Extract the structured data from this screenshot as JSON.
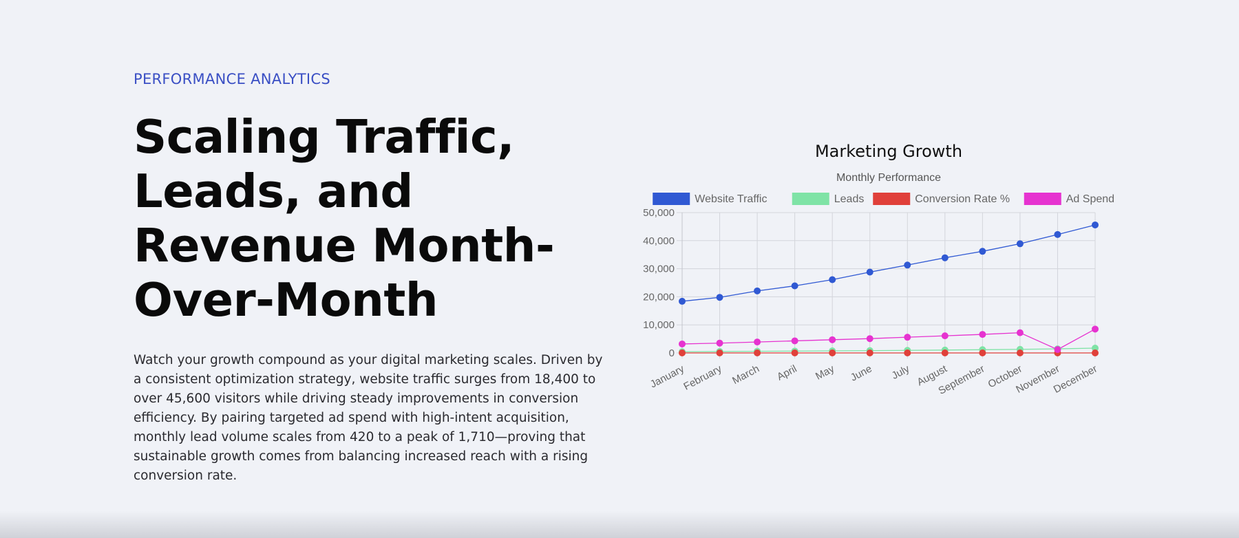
{
  "hero": {
    "eyebrow": "PERFORMANCE ANALYTICS",
    "headline": "Scaling Traffic, Leads, and Revenue Month-Over-Month",
    "body": "Watch your growth compound as your digital marketing scales. Driven by a consistent optimization strategy, website traffic surges from 18,400 to over 45,600 visitors while driving steady improvements in conversion efficiency. By pairing targeted ad spend with high-intent acquisition, monthly lead volume scales from 420 to a peak of 1,710—proving that sustainable growth comes from balancing increased reach with a rising conversion rate."
  },
  "chart_data": {
    "type": "line",
    "title": "Marketing Growth",
    "subtitle": "Monthly Performance",
    "categories": [
      "January",
      "February",
      "March",
      "April",
      "May",
      "June",
      "July",
      "August",
      "September",
      "October",
      "November",
      "December"
    ],
    "ylim": [
      0,
      50000
    ],
    "yticks": [
      0,
      10000,
      20000,
      30000,
      40000,
      50000
    ],
    "ytick_labels": [
      "0",
      "10,000",
      "20,000",
      "30,000",
      "40,000",
      "50,000"
    ],
    "grid": true,
    "legend_position": "top",
    "series": [
      {
        "name": "Website Traffic",
        "color": "#3059d3",
        "values": [
          18400,
          19800,
          22100,
          23900,
          26100,
          28800,
          31300,
          33900,
          36200,
          38900,
          42200,
          45600
        ]
      },
      {
        "name": "Leads",
        "color": "#7fe3a6",
        "values": [
          420,
          510,
          590,
          650,
          730,
          820,
          920,
          1030,
          1150,
          1280,
          1450,
          1710
        ]
      },
      {
        "name": "Conversion Rate %",
        "color": "#e0403a",
        "values": [
          2.3,
          2.6,
          2.7,
          2.7,
          2.8,
          2.8,
          2.9,
          3.0,
          3.2,
          3.3,
          3.4,
          3.8
        ]
      },
      {
        "name": "Ad Spend $",
        "color": "#e633d0",
        "values": [
          3200,
          3500,
          3900,
          4300,
          4700,
          5100,
          5600,
          6100,
          6600,
          7200,
          1200,
          8500
        ]
      }
    ]
  }
}
